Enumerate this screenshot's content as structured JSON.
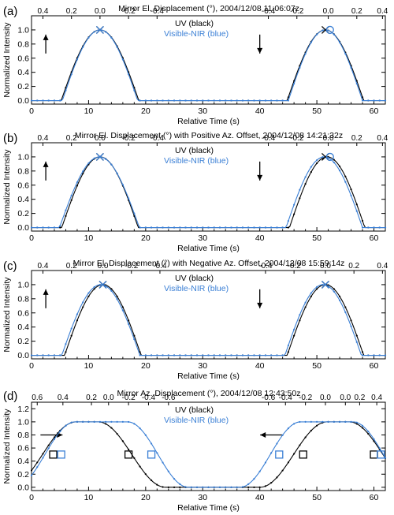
{
  "colors": {
    "uv": "#000000",
    "vis": "#3a7fd5"
  },
  "chart_data": [
    {
      "panel": "(a)",
      "type": "line",
      "title": "Mirror El. Displacement (°), 2004/12/08 11:06:07z",
      "xlabel": "Relative Time (s)",
      "ylabel": "Normalized Intensity",
      "xlim": [
        0,
        62
      ],
      "ylim": [
        -0.05,
        1.2
      ],
      "xticks": [
        0,
        10,
        20,
        30,
        40,
        50,
        60
      ],
      "yticks": [
        0.0,
        0.2,
        0.4,
        0.6,
        0.8,
        1.0
      ],
      "top_ticks_left": [
        {
          "label": "0.4",
          "t": 2
        },
        {
          "label": "0.2",
          "t": 7
        },
        {
          "label": "0.0",
          "t": 12
        },
        {
          "label": "-0.2",
          "t": 17
        },
        {
          "label": "-0.4",
          "t": 22
        }
      ],
      "top_ticks_right": [
        {
          "label": "-0.4",
          "t": 41.5
        },
        {
          "label": "-0.2",
          "t": 46.5
        },
        {
          "label": "0.0",
          "t": 52
        },
        {
          "label": "0.2",
          "t": 57
        },
        {
          "label": "0.4",
          "t": 61.5
        }
      ],
      "legend": [
        "UV (black)",
        "Visible-NIR (blue)"
      ],
      "arrows": [
        {
          "dir": "up",
          "t": 2.5
        },
        {
          "dir": "down",
          "t": 40
        }
      ],
      "markers": [
        {
          "series": "UV",
          "shape": "x",
          "t": 12,
          "y": 1.0
        },
        {
          "series": "Visible-NIR",
          "shape": "x",
          "t": 12,
          "y": 1.0
        },
        {
          "series": "UV",
          "shape": "x",
          "t": 51.5,
          "y": 1.0
        },
        {
          "series": "Visible-NIR",
          "shape": "o",
          "t": 52.3,
          "y": 1.0
        }
      ],
      "series": [
        {
          "name": "UV (black)",
          "peaks": [
            {
              "t1": 5.2,
              "t2": 18.8
            },
            {
              "t1": 44.8,
              "t2": 58.2
            }
          ]
        },
        {
          "name": "Visible-NIR (blue)",
          "peaks": [
            {
              "t1": 5.4,
              "t2": 18.6
            },
            {
              "t1": 45.0,
              "t2": 58.0
            }
          ]
        }
      ]
    },
    {
      "panel": "(b)",
      "type": "line",
      "title": "Mirror El. Displacement (°) with Positive Az. Offset, 2004/12/08 14:21:32z",
      "xlabel": "Relative Time (s)",
      "ylabel": "Normalized Intensity",
      "xlim": [
        0,
        62
      ],
      "ylim": [
        -0.05,
        1.2
      ],
      "xticks": [
        0,
        10,
        20,
        30,
        40,
        50,
        60
      ],
      "yticks": [
        0.0,
        0.2,
        0.4,
        0.6,
        0.8,
        1.0
      ],
      "top_ticks_left": [
        {
          "label": "0.4",
          "t": 2
        },
        {
          "label": "0.2",
          "t": 7
        },
        {
          "label": "0.0",
          "t": 12
        },
        {
          "label": "-0.2",
          "t": 17
        },
        {
          "label": "-0.4",
          "t": 22
        }
      ],
      "top_ticks_right": [
        {
          "label": "-0.4",
          "t": 41.5
        },
        {
          "label": "-0.2",
          "t": 46.5
        },
        {
          "label": "0.0",
          "t": 52
        },
        {
          "label": "0.2",
          "t": 57
        },
        {
          "label": "0.4",
          "t": 61.5
        }
      ],
      "legend": [
        "UV (black)",
        "Visible-NIR (blue)"
      ],
      "arrows": [
        {
          "dir": "up",
          "t": 2.5
        },
        {
          "dir": "down",
          "t": 40
        }
      ],
      "markers": [
        {
          "series": "UV",
          "shape": "x",
          "t": 12,
          "y": 1.0
        },
        {
          "series": "Visible-NIR",
          "shape": "x",
          "t": 12,
          "y": 1.0
        },
        {
          "series": "UV",
          "shape": "x",
          "t": 51.5,
          "y": 1.0
        },
        {
          "series": "Visible-NIR",
          "shape": "o",
          "t": 52.3,
          "y": 1.0
        }
      ],
      "series": [
        {
          "name": "UV (black)",
          "peaks": [
            {
              "t1": 5.3,
              "t2": 18.7
            },
            {
              "t1": 45.2,
              "t2": 58.4
            }
          ]
        },
        {
          "name": "Visible-NIR (blue)",
          "peaks": [
            {
              "t1": 4.9,
              "t2": 18.9
            },
            {
              "t1": 44.6,
              "t2": 58.0
            }
          ]
        }
      ]
    },
    {
      "panel": "(c)",
      "type": "line",
      "title": "Mirror El. Displacement (°) with Negative Az. Offset, 2004/12/08 15:59:14z",
      "xlabel": "Relative Time (s)",
      "ylabel": "Normalized Intensity",
      "xlim": [
        0,
        62
      ],
      "ylim": [
        -0.05,
        1.2
      ],
      "xticks": [
        0,
        10,
        20,
        30,
        40,
        50,
        60
      ],
      "yticks": [
        0.0,
        0.2,
        0.4,
        0.6,
        0.8,
        1.0
      ],
      "top_ticks_left": [
        {
          "label": "0.4",
          "t": 2
        },
        {
          "label": "0.2",
          "t": 7
        },
        {
          "label": "0.0",
          "t": 12.5
        },
        {
          "label": "-0.2",
          "t": 17.5
        },
        {
          "label": "-0.4",
          "t": 22.5
        }
      ],
      "top_ticks_right": [
        {
          "label": "-0.4",
          "t": 41
        },
        {
          "label": "-0.2",
          "t": 46
        },
        {
          "label": "0.0",
          "t": 51.5
        },
        {
          "label": "0.2",
          "t": 56.5
        },
        {
          "label": "0.4",
          "t": 61.5
        }
      ],
      "legend": [
        "UV (black)",
        "Visible-NIR (blue)"
      ],
      "arrows": [
        {
          "dir": "up",
          "t": 2.5
        },
        {
          "dir": "down",
          "t": 40
        }
      ],
      "markers": [
        {
          "series": "UV",
          "shape": "x",
          "t": 12.5,
          "y": 1.0
        },
        {
          "series": "Visible-NIR",
          "shape": "x",
          "t": 12.5,
          "y": 1.0
        },
        {
          "series": "UV",
          "shape": "x",
          "t": 51.5,
          "y": 1.0
        },
        {
          "series": "Visible-NIR",
          "shape": "x",
          "t": 51.5,
          "y": 1.0
        }
      ],
      "series": [
        {
          "name": "UV (black)",
          "peaks": [
            {
              "t1": 5.8,
              "t2": 19.2
            },
            {
              "t1": 44.8,
              "t2": 58.2
            }
          ]
        },
        {
          "name": "Visible-NIR (blue)",
          "peaks": [
            {
              "t1": 5.3,
              "t2": 19.0
            },
            {
              "t1": 44.4,
              "t2": 57.8
            }
          ]
        }
      ]
    },
    {
      "panel": "(d)",
      "type": "line",
      "title": "Mirror Az. Displacement (°), 2004/12/08 12:43:50z",
      "xlabel": "Relative Time (s)",
      "ylabel": "Normalized Intensity",
      "xlim": [
        0,
        62
      ],
      "ylim": [
        -0.05,
        1.3
      ],
      "xticks": [
        0,
        10,
        20,
        30,
        40,
        50,
        60
      ],
      "yticks": [
        0.0,
        0.2,
        0.4,
        0.6,
        0.8,
        1.0,
        1.2
      ],
      "top_ticks_left": [
        {
          "label": "0.6",
          "t": 1
        },
        {
          "label": "0.4",
          "t": 5.5
        },
        {
          "label": "0.2",
          "t": 10.5
        },
        {
          "label": "0.0",
          "t": 13.5
        },
        {
          "label": "-0.2",
          "t": 17
        },
        {
          "label": "-0.4",
          "t": 20.5
        },
        {
          "label": "-0.6",
          "t": 24
        }
      ],
      "top_ticks_right": [
        {
          "label": "-0.6",
          "t": 41.5
        },
        {
          "label": "-0.4",
          "t": 44.5
        },
        {
          "label": "-0.2",
          "t": 48
        },
        {
          "label": "0.0",
          "t": 51.5
        },
        {
          "label": "0.0",
          "t": 55
        },
        {
          "label": "0.2",
          "t": 57.5
        },
        {
          "label": "0.4",
          "t": 60.5
        }
      ],
      "legend": [
        "UV (black)",
        "Visible-NIR (blue)"
      ],
      "arrows": [
        {
          "dir": "right",
          "t": 3.5
        },
        {
          "dir": "left",
          "t": 42
        }
      ],
      "markers": [
        {
          "series": "UV",
          "shape": "square",
          "t": 3.8,
          "y": 0.5
        },
        {
          "series": "Visible-NIR",
          "shape": "square",
          "t": 5.2,
          "y": 0.5
        },
        {
          "series": "UV",
          "shape": "square",
          "t": 17.0,
          "y": 0.5
        },
        {
          "series": "Visible-NIR",
          "shape": "square",
          "t": 21.0,
          "y": 0.5
        },
        {
          "series": "Visible-NIR",
          "shape": "square",
          "t": 43.4,
          "y": 0.5
        },
        {
          "series": "UV",
          "shape": "square",
          "t": 47.6,
          "y": 0.5
        },
        {
          "series": "UV",
          "shape": "square",
          "t": 60.0,
          "y": 0.5
        },
        {
          "series": "Visible-NIR",
          "shape": "square",
          "t": 61.2,
          "y": 0.5
        }
      ],
      "series": [
        {
          "name": "UV (black)",
          "peaks": [
            {
              "t1": -4.0,
              "t2": 23.5,
              "plateau": 0.14
            },
            {
              "t1": 40.0,
              "t2": 67.5,
              "plateau": 0.14
            }
          ]
        },
        {
          "name": "Visible-NIR (blue)",
          "peaks": [
            {
              "t1": -3.0,
              "t2": 27.5,
              "plateau": 0.3
            },
            {
              "t1": 36.5,
              "t2": 67.0,
              "plateau": 0.3
            }
          ]
        }
      ]
    }
  ]
}
